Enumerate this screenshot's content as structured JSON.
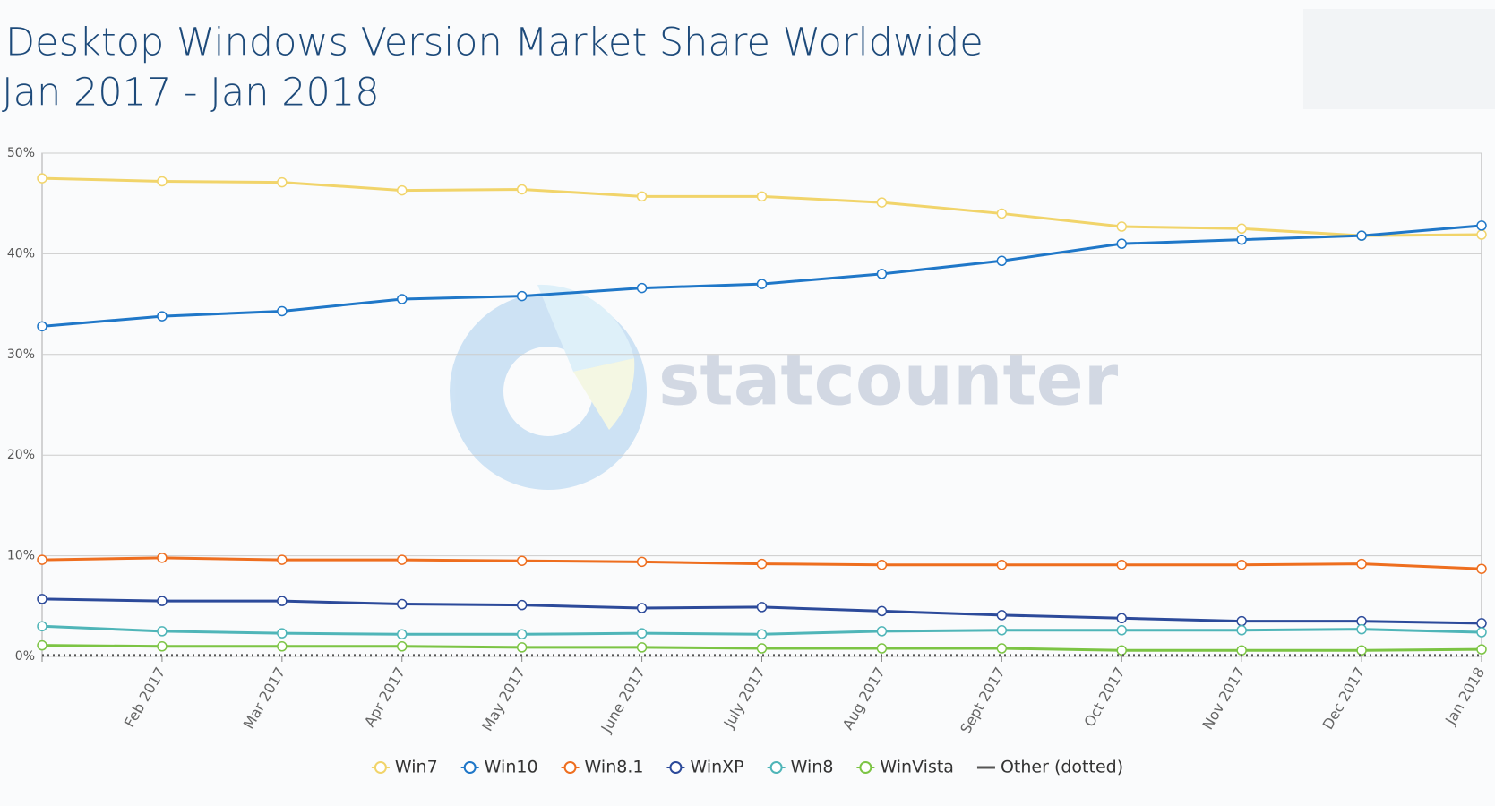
{
  "chart_data": {
    "type": "line",
    "title": "Desktop Windows Version Market Share Worldwide",
    "subtitle": "Jan 2017 - Jan 2018",
    "watermark": "statcounter",
    "categories": [
      null,
      "Feb 2017",
      "Mar 2017",
      "Apr 2017",
      "May 2017",
      "June 2017",
      "July 2017",
      "Aug 2017",
      "Sept 2017",
      "Oct 2017",
      "Nov 2017",
      "Dec 2017",
      "Jan 2018"
    ],
    "series": [
      {
        "name": "Win7",
        "color": "#f1d46a",
        "values": [
          47.5,
          47.2,
          47.1,
          46.3,
          46.4,
          45.7,
          45.7,
          45.1,
          44.0,
          42.7,
          42.5,
          41.8,
          41.9
        ]
      },
      {
        "name": "Win10",
        "color": "#1f77c8",
        "values": [
          32.8,
          33.8,
          34.3,
          35.5,
          35.8,
          36.6,
          37.0,
          38.0,
          39.3,
          41.0,
          41.4,
          41.8,
          42.8
        ]
      },
      {
        "name": "Win8.1",
        "color": "#ee6e1f",
        "values": [
          9.6,
          9.8,
          9.6,
          9.6,
          9.5,
          9.4,
          9.2,
          9.1,
          9.1,
          9.1,
          9.1,
          9.2,
          8.7
        ]
      },
      {
        "name": "WinXP",
        "color": "#2c4a9a",
        "values": [
          5.7,
          5.5,
          5.5,
          5.2,
          5.1,
          4.8,
          4.9,
          4.5,
          4.1,
          3.8,
          3.5,
          3.5,
          3.3
        ]
      },
      {
        "name": "Win8",
        "color": "#4fb5b8",
        "values": [
          3.0,
          2.5,
          2.3,
          2.2,
          2.2,
          2.3,
          2.2,
          2.5,
          2.6,
          2.6,
          2.6,
          2.7,
          2.4
        ]
      },
      {
        "name": "WinVista",
        "color": "#7cc444",
        "values": [
          1.1,
          1.0,
          1.0,
          1.0,
          0.9,
          0.9,
          0.8,
          0.8,
          0.8,
          0.6,
          0.6,
          0.6,
          0.7
        ]
      },
      {
        "name": "Other (dotted)",
        "color": "#555555",
        "dotted": true,
        "values": [
          0.1,
          0.1,
          0.1,
          0.1,
          0.1,
          0.1,
          0.1,
          0.1,
          0.1,
          0.1,
          0.1,
          0.1,
          0.1
        ]
      }
    ],
    "ylim": [
      0,
      50
    ],
    "yticks": [
      {
        "value": 0,
        "label": "0%"
      },
      {
        "value": 10,
        "label": "10%"
      },
      {
        "value": 20,
        "label": "20%"
      },
      {
        "value": 30,
        "label": "30%"
      },
      {
        "value": 40,
        "label": "40%"
      },
      {
        "value": 50,
        "label": "50%"
      }
    ],
    "grid": true
  }
}
